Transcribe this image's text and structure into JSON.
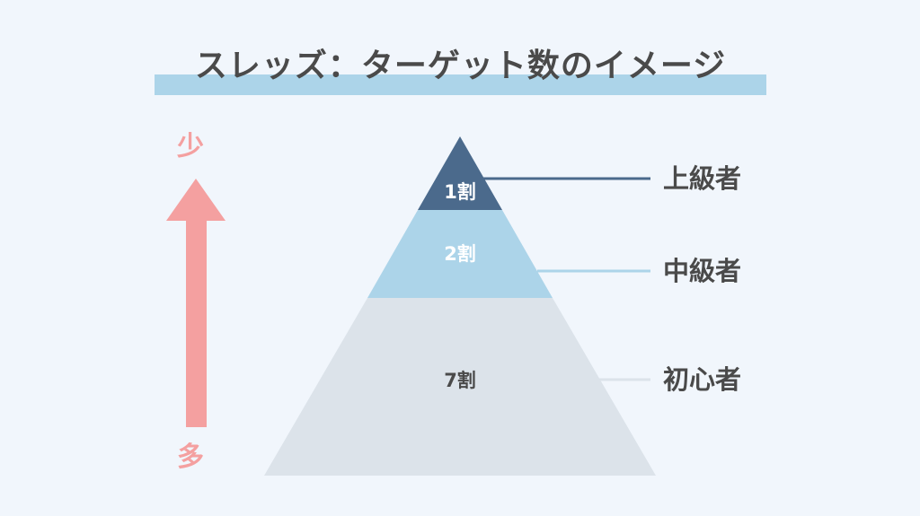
{
  "title": "スレッズ：ターゲット数のイメージ",
  "arrow": {
    "top_label": "少",
    "bottom_label": "多",
    "color": "#f4a0a0"
  },
  "tiers": [
    {
      "share": "1割",
      "level": "上級者",
      "color": "#4b6a8c",
      "text_color": "#ffffff",
      "line_color": "#4b6a8c"
    },
    {
      "share": "2割",
      "level": "中級者",
      "color": "#acd4e9",
      "text_color": "#ffffff",
      "line_color": "#acd4e9"
    },
    {
      "share": "7割",
      "level": "初心者",
      "color": "#dce3ea",
      "text_color": "#4a4a4a",
      "line_color": "#dce3ea"
    }
  ]
}
